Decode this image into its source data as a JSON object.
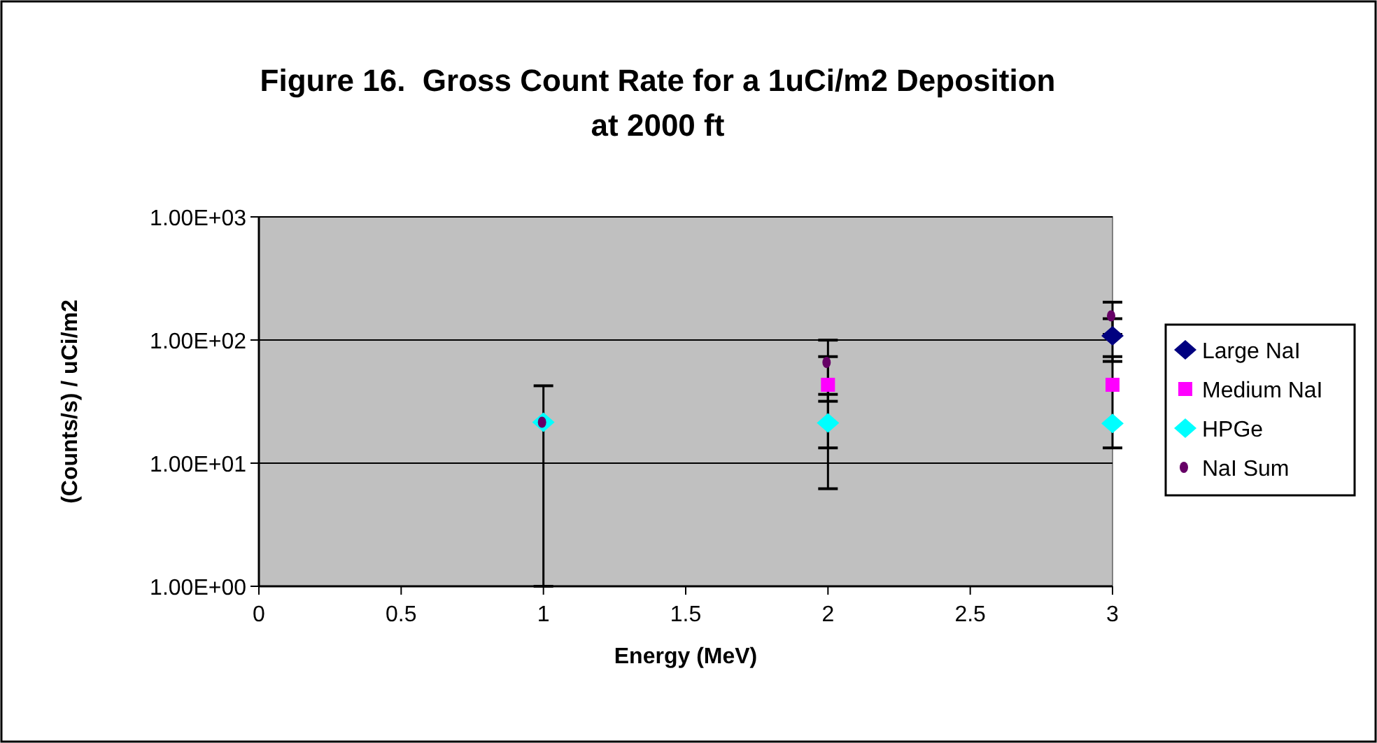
{
  "chart_data": {
    "type": "scatter",
    "title": "Figure 16.  Gross Count Rate for a 1uCi/m2 Deposition\nat 2000 ft",
    "xlabel": "Energy (MeV)",
    "ylabel": "(Counts/s) / uCi/m2",
    "x": [
      1,
      2,
      3
    ],
    "xlim": [
      0,
      3
    ],
    "xticks": [
      0,
      0.5,
      1,
      1.5,
      2,
      2.5,
      3
    ],
    "ylim": [
      1,
      1000
    ],
    "yticks": [
      {
        "value": 1,
        "label": "1.00E+00"
      },
      {
        "value": 10,
        "label": "1.00E+01"
      },
      {
        "value": 100,
        "label": "1.00E+02"
      },
      {
        "value": 1000,
        "label": "1.00E+03"
      }
    ],
    "log": "y",
    "grid": "y",
    "legend": "right",
    "series": [
      {
        "name": "Large NaI",
        "color": "#000080",
        "marker": "diamond",
        "values": [
          null,
          null,
          108
        ],
        "errors": [
          null,
          null,
          41
        ]
      },
      {
        "name": "Medium NaI",
        "color": "#ff00ff",
        "marker": "square",
        "values": [
          null,
          43.3,
          43.3
        ],
        "errors": [
          null,
          30,
          30
        ]
      },
      {
        "name": "HPGe",
        "color": "#00ffff",
        "marker": "diamond",
        "values": [
          21.5,
          21.2,
          21
        ],
        "errors": [
          null,
          15,
          null
        ]
      },
      {
        "name": "NaI Sum",
        "color": "#660066",
        "marker": "circle",
        "values": [
          21.5,
          65.8,
          157
        ],
        "errors": [
          [
            20.5,
            21
          ],
          34,
          46
        ]
      }
    ]
  }
}
